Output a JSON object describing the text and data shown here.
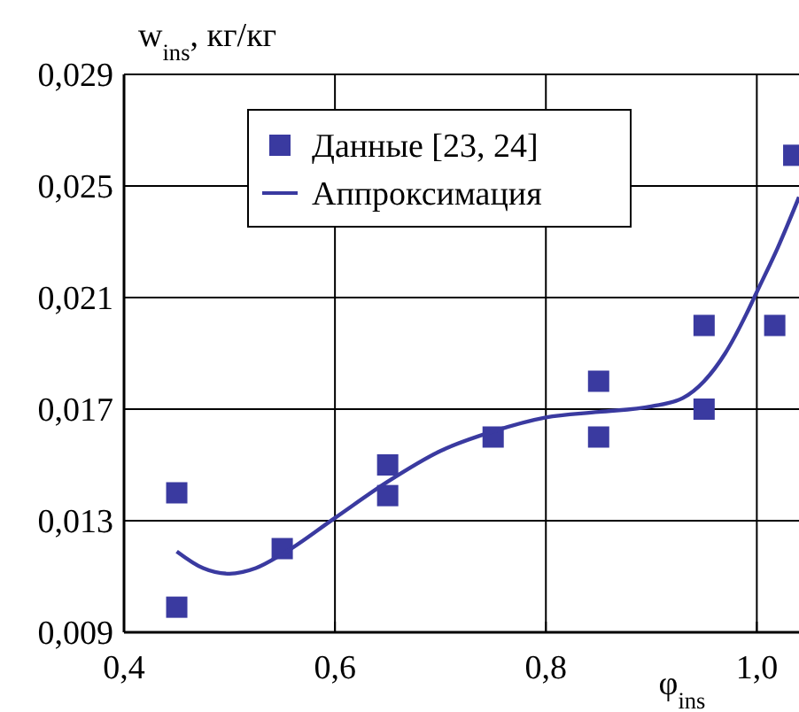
{
  "chart_data": {
    "type": "scatter",
    "xlabel": "φ$_{ins}$",
    "ylabel": "w$_{ins}$, кг/кг",
    "xlim": [
      0.4,
      1.04
    ],
    "ylim": [
      0.009,
      0.029
    ],
    "xticks": [
      {
        "value": 0.4,
        "label": "0,4"
      },
      {
        "value": 0.6,
        "label": "0,6"
      },
      {
        "value": 0.8,
        "label": "0,8"
      },
      {
        "value": 1.0,
        "label": "1,0"
      }
    ],
    "yticks": [
      {
        "value": 0.009,
        "label": "0,009"
      },
      {
        "value": 0.013,
        "label": "0,013"
      },
      {
        "value": 0.017,
        "label": "0,017"
      },
      {
        "value": 0.021,
        "label": "0,021"
      },
      {
        "value": 0.025,
        "label": "0,025"
      },
      {
        "value": 0.029,
        "label": "0,029"
      }
    ],
    "grid": true,
    "legend": "top",
    "marker": "square",
    "series": [
      {
        "name": "Данные [23, 24]",
        "color": "#3a3aa0",
        "x": [
          0.45,
          0.45,
          0.55,
          0.65,
          0.65,
          0.75,
          0.85,
          0.85,
          0.95,
          0.95,
          1.017,
          1.035
        ],
        "values": [
          0.014,
          0.0099,
          0.012,
          0.015,
          0.0139,
          0.016,
          0.018,
          0.016,
          0.02,
          0.017,
          0.02,
          0.0261
        ]
      },
      {
        "name": "Аппроксимация",
        "type": "line",
        "color": "#3a3aa0",
        "marker": "none",
        "line_style": "solid",
        "x": [
          0.45,
          0.475,
          0.5,
          0.525,
          0.55,
          0.6,
          0.65,
          0.7,
          0.75,
          0.8,
          0.85,
          0.9,
          0.93,
          0.95,
          0.97,
          0.99,
          1.0,
          1.02,
          1.04
        ],
        "values": [
          0.0119,
          0.0113,
          0.0111,
          0.0113,
          0.0118,
          0.0131,
          0.0144,
          0.0155,
          0.0162,
          0.0167,
          0.0169,
          0.0171,
          0.0174,
          0.018,
          0.019,
          0.0204,
          0.0212,
          0.0228,
          0.0246
        ]
      }
    ]
  }
}
